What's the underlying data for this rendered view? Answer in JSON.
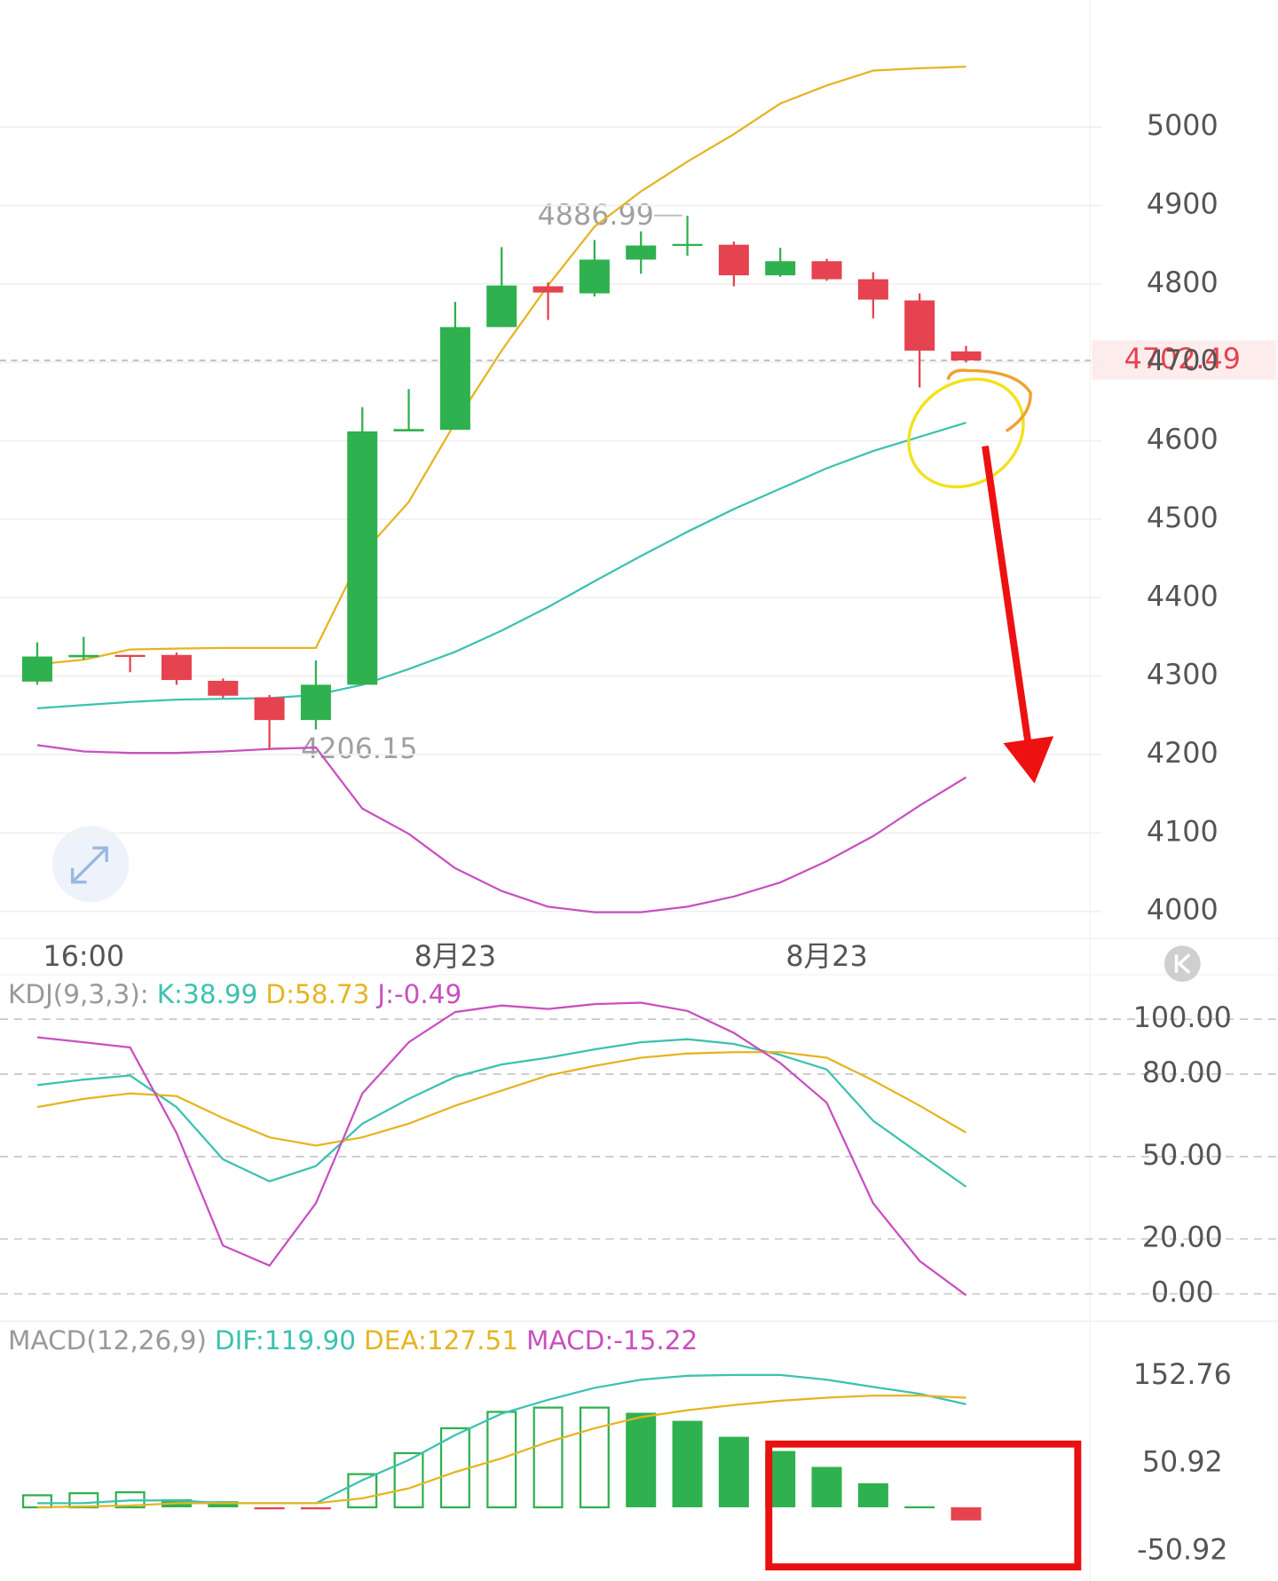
{
  "chart_data": [
    {
      "type": "candlestick",
      "categories": [
        null,
        "16:00",
        null,
        null,
        null,
        null,
        null,
        null,
        null,
        "8月23",
        null,
        null,
        null,
        null,
        null,
        null,
        null,
        "8月23",
        null,
        null,
        null
      ],
      "open": [
        4293,
        4324,
        4327,
        4327,
        4294,
        4273,
        4244,
        4289,
        4612,
        4614,
        4745,
        4797,
        4788,
        4831,
        4849,
        4850,
        4811,
        4829,
        4806,
        4779,
        4714
      ],
      "high": [
        4343,
        4350,
        4327,
        4330,
        4297,
        4276,
        4320,
        4643,
        4666,
        4777,
        4847,
        4802,
        4856,
        4867,
        4886.99,
        4854,
        4846,
        4832,
        4815,
        4788,
        4721
      ],
      "low": [
        4289,
        4321,
        4305,
        4289,
        4272,
        4206.15,
        4232,
        4289,
        4612,
        4614,
        4745,
        4754,
        4784,
        4813,
        4836,
        4797,
        4809,
        4804,
        4756,
        4668,
        4700
      ],
      "close": [
        4325,
        4327,
        4325,
        4295,
        4275,
        4244,
        4289,
        4612,
        4615,
        4745,
        4798,
        4789,
        4831,
        4849,
        4851,
        4811,
        4829,
        4806,
        4780,
        4715,
        4702.49
      ],
      "up_color": "#2fb14f",
      "down_color": "#e5434f",
      "series": [
        {
          "color": "#e6b422",
          "values": [
            4315,
            4321,
            4334,
            4335,
            4336,
            4336,
            4336,
            4456,
            4522,
            4623,
            4715,
            4798,
            4873,
            4918,
            4956,
            4991,
            5030,
            5053,
            5072,
            5075,
            5077
          ]
        },
        {
          "color": "#3cc2b0",
          "values": [
            4259,
            4263,
            4267,
            4270,
            4271,
            4272,
            4276,
            4289,
            4309,
            4331,
            4358,
            4388,
            4421,
            4453,
            4484,
            4513,
            4539,
            4565,
            4587,
            4605,
            4623
          ]
        },
        {
          "color": "#c850c0",
          "values": [
            4212,
            4204,
            4202,
            4202,
            4204,
            4207,
            4209,
            4131,
            4099,
            4055,
            4026,
            4006,
            3999,
            3999,
            4006,
            4019,
            4037,
            4064,
            4096,
            4135,
            4171
          ]
        }
      ],
      "ylim": [
        3968,
        5162
      ],
      "yticks": [
        4000,
        4100,
        4200,
        4300,
        4400,
        4500,
        4600,
        4700,
        4800,
        4900,
        5000
      ],
      "grid": true
    },
    {
      "type": "line",
      "header": [
        {
          "text": "KDJ(9,3,3):",
          "color": "#999999"
        },
        {
          "text": "K:38.99",
          "color": "#3cc2b0"
        },
        {
          "text": "D:58.73",
          "color": "#e6b422"
        },
        {
          "text": "J:-0.49",
          "color": "#c850c0"
        }
      ],
      "series": [
        {
          "color": "#3cc2b0",
          "values": [
            76,
            78,
            79.5,
            68,
            49,
            41,
            46.5,
            62,
            71,
            79,
            83.5,
            86,
            89,
            91.6,
            92.7,
            91,
            87,
            81.7,
            63,
            51,
            38.99
          ]
        },
        {
          "color": "#e6b422",
          "values": [
            68,
            71,
            73,
            72,
            64,
            57,
            54,
            57,
            62,
            68.5,
            74,
            79.5,
            83,
            86,
            87.5,
            88,
            88,
            86,
            77.7,
            68.5,
            58.73
          ]
        },
        {
          "color": "#c850c0",
          "values": [
            93.4,
            91.6,
            89.7,
            58.6,
            17.6,
            10.3,
            33,
            73,
            91.6,
            102.6,
            105,
            103.7,
            105.5,
            106,
            103,
            95,
            84,
            69.6,
            33,
            12,
            -0.49
          ]
        }
      ],
      "ylim": [
        -9.2,
        113.6
      ],
      "yticks": [
        {
          "value": 0,
          "label": "0.00"
        },
        {
          "value": 20,
          "label": "20.00"
        },
        {
          "value": 50,
          "label": "50.00"
        },
        {
          "value": 80,
          "label": "80.00"
        },
        {
          "value": 100,
          "label": "100.00"
        }
      ],
      "grid": "dashed"
    },
    {
      "type": "macd",
      "header": [
        {
          "text": "MACD(12,26,9)",
          "color": "#999999"
        },
        {
          "text": "DIF:119.90",
          "color": "#3cc2b0"
        },
        {
          "text": "DEA:127.51",
          "color": "#e6b422"
        },
        {
          "text": "MACD:-15.22",
          "color": "#c850c0"
        }
      ],
      "values": [
        14,
        16.4,
        17.5,
        9.4,
        7,
        -1.5,
        -1.5,
        38.6,
        63,
        92,
        111,
        116,
        116,
        110,
        100.6,
        82,
        65.5,
        47,
        28,
        1.2,
        -15.22
      ],
      "up_color": "#2fb14f",
      "down_color": "#e5434f",
      "series": [
        {
          "color": "#3cc2b0",
          "values": [
            4.7,
            5,
            8,
            8,
            5,
            4.7,
            4.7,
            31.6,
            55,
            84,
            109,
            125,
            139,
            148.5,
            153,
            154,
            154,
            148.5,
            140,
            132,
            119.9
          ]
        },
        {
          "color": "#e6b422",
          "values": [
            0,
            1,
            2,
            4.7,
            4.7,
            4.7,
            4.7,
            10.5,
            22,
            41,
            57,
            76,
            92,
            105,
            113,
            119,
            124,
            127.5,
            130,
            130,
            127.51
          ]
        }
      ],
      "ylim": [
        -74,
        213
      ],
      "yticks": [
        -50.92,
        50.92,
        152.76
      ]
    }
  ]
}
